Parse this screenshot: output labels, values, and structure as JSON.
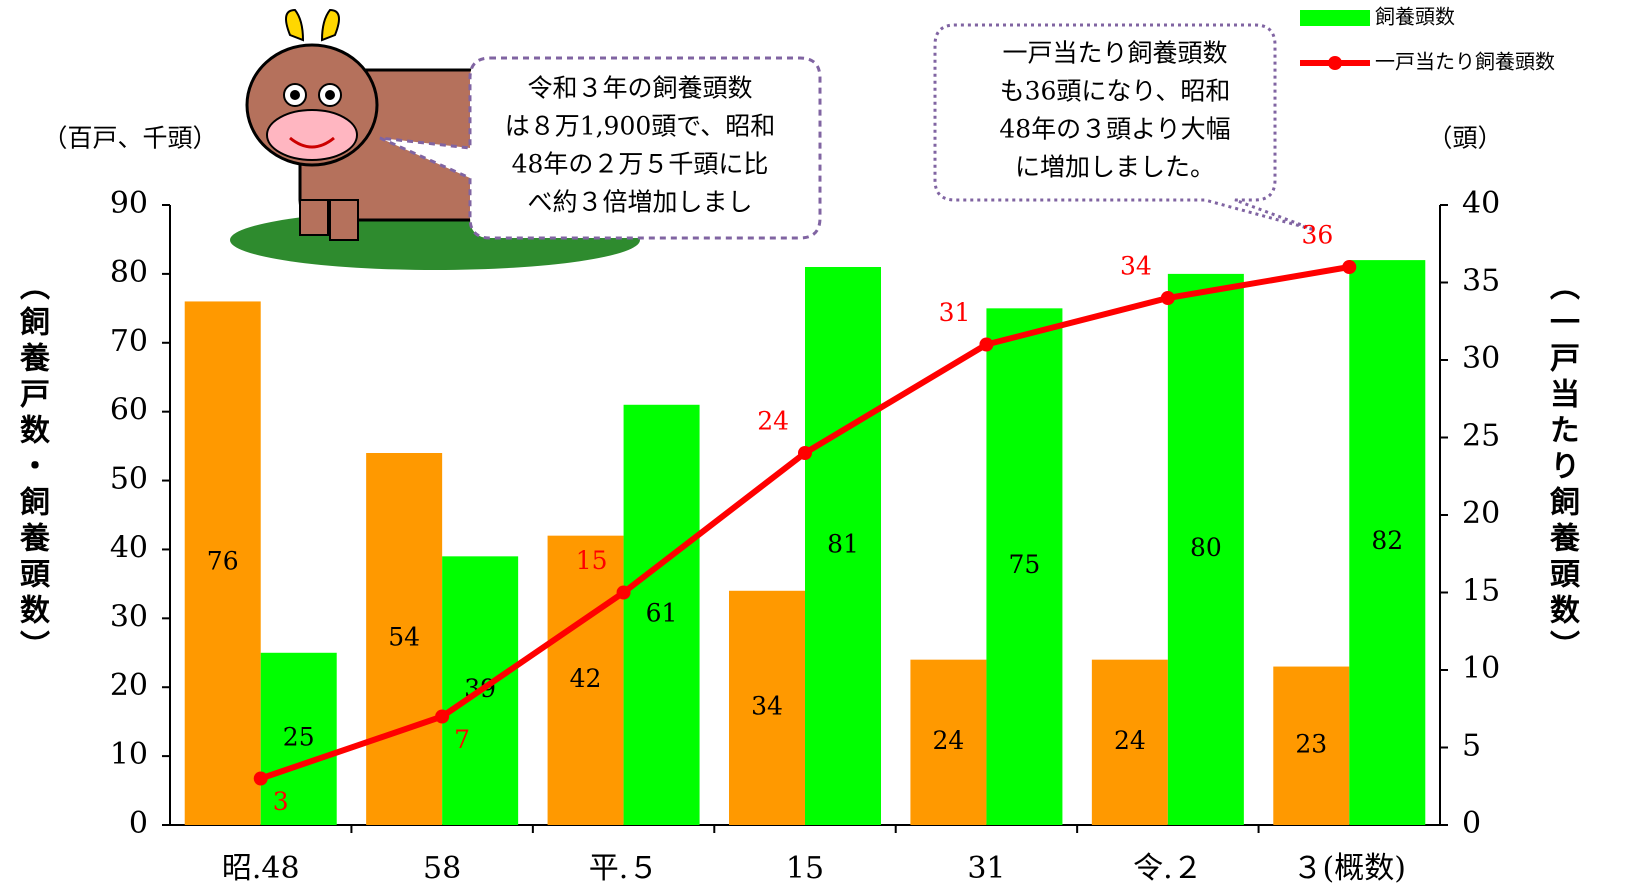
{
  "chart_data": {
    "type": "bar",
    "categories": [
      "昭.48",
      "58",
      "平.５",
      "15",
      "31",
      "令.２",
      "３(概数)"
    ],
    "series": [
      {
        "color": "#ff9900",
        "values": [
          76,
          54,
          42,
          34,
          24,
          24,
          23
        ]
      },
      {
        "name": "飼養頭数",
        "color": "#00ff00",
        "values": [
          25,
          39,
          61,
          81,
          75,
          80,
          82
        ]
      },
      {
        "name": "一戸当たり飼養頭数",
        "color": "#ff0000",
        "type": "line",
        "axis": "y2",
        "values": [
          3,
          7,
          15,
          24,
          31,
          34,
          36
        ]
      }
    ],
    "ylim": [
      0,
      90
    ],
    "yticks": [
      0,
      10,
      20,
      30,
      40,
      50,
      60,
      70,
      80,
      90
    ],
    "y2lim": [
      0,
      40
    ],
    "y2ticks": [
      0,
      5,
      10,
      15,
      20,
      25,
      30,
      35,
      40
    ],
    "y_unit": "（百戸、千頭）",
    "y2_unit": "（頭）",
    "ylabel": "（飼養戸数・飼養頭数）",
    "y2label": "（一戸当たり飼養頭数）",
    "annotations": [
      {
        "lines": [
          "令和３年の飼養頭数",
          "は８万1,900頭で、昭和",
          "48年の２万５千頭に比",
          "べ約３倍増加しまし"
        ]
      },
      {
        "lines": [
          "一戸当たり飼養頭数",
          "も36頭になり、昭和",
          "48年の３頭より大幅",
          "に増加しました。"
        ]
      }
    ],
    "legend": "top-right"
  }
}
